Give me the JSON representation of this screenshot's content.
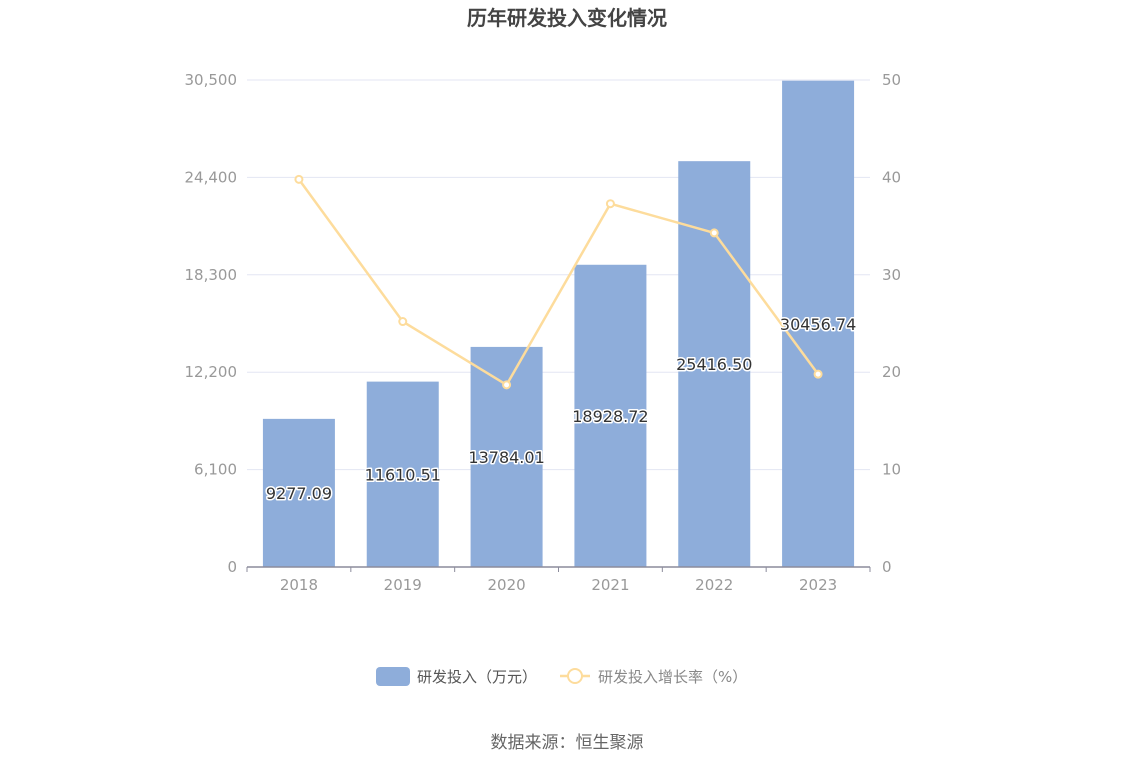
{
  "chart_data": {
    "type": "bar",
    "title": "历年研发投入变化情况",
    "categories": [
      "2018",
      "2019",
      "2020",
      "2021",
      "2022",
      "2023"
    ],
    "series": [
      {
        "name": "研发投入（万元）",
        "type": "bar",
        "axis": "left",
        "values": [
          9277.09,
          11610.51,
          13784.01,
          18928.72,
          25416.5,
          30456.74
        ],
        "labels": [
          "9277.09",
          "11610.51",
          "13784.01",
          "18928.72",
          "25416.50",
          "30456.74"
        ]
      },
      {
        "name": "研发投入增长率（%）",
        "type": "line",
        "axis": "right",
        "values": [
          39.8,
          25.2,
          18.7,
          37.3,
          34.3,
          19.8
        ]
      }
    ],
    "y_left": {
      "min": 0,
      "max": 30500,
      "ticks": [
        "0",
        "6,100",
        "12,200",
        "18,300",
        "24,400",
        "30,500"
      ]
    },
    "y_right": {
      "min": 0,
      "max": 50,
      "ticks": [
        "0",
        "10",
        "20",
        "30",
        "40",
        "50"
      ]
    },
    "grid": true,
    "legend_position": "bottom",
    "colors": {
      "bar": "#8eadda",
      "line": "#fddc9c",
      "axis": "#8c8c9c",
      "grid": "#e3e6f3",
      "tick_text": "#999999"
    }
  },
  "footer": {
    "source": "数据来源：恒生聚源"
  }
}
